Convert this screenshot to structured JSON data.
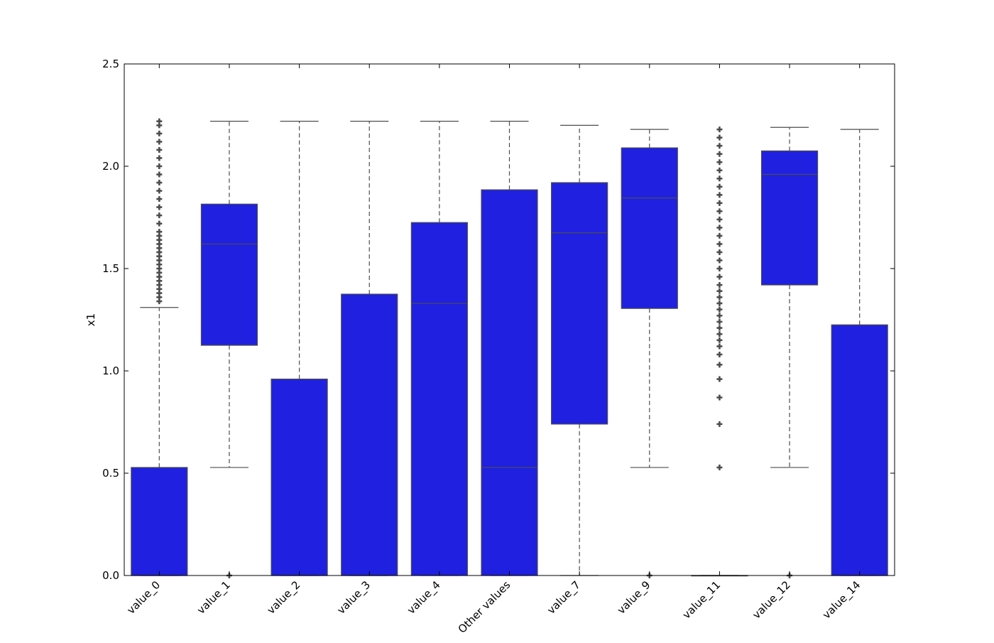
{
  "chart_data": {
    "type": "box",
    "title": "",
    "xlabel": "",
    "ylabel": "x1",
    "ylim": [
      0.0,
      2.5
    ],
    "yticks": [
      0.0,
      0.5,
      1.0,
      1.5,
      2.0,
      2.5
    ],
    "ytick_labels": [
      "0.0",
      "0.5",
      "1.0",
      "1.5",
      "2.0",
      "2.5"
    ],
    "grid": false,
    "legend": "none",
    "colors": {
      "box_fill": "#2020e0",
      "box_edge": "#4d4d4d",
      "whisker": "#4d4d4d",
      "flier": "#4d4d4d"
    },
    "categories": [
      "value_0",
      "value_1",
      "value_2",
      "value_3",
      "value_4",
      "Other values",
      "value_7",
      "value_9",
      "value_11",
      "value_12",
      "value_14"
    ],
    "boxes": [
      {
        "q1": 0.0,
        "median": 0.0,
        "q3": 0.528,
        "whisker_low": 0.0,
        "whisker_high": 1.31,
        "fliers": [
          1.34,
          1.36,
          1.38,
          1.4,
          1.42,
          1.44,
          1.46,
          1.48,
          1.5,
          1.52,
          1.54,
          1.56,
          1.58,
          1.6,
          1.62,
          1.64,
          1.66,
          1.68,
          1.72,
          1.76,
          1.8,
          1.84,
          1.88,
          1.92,
          1.96,
          2.0,
          2.04,
          2.08,
          2.12,
          2.16,
          2.2,
          2.22
        ]
      },
      {
        "q1": 1.125,
        "median": 1.62,
        "q3": 1.815,
        "whisker_low": 0.528,
        "whisker_high": 2.22,
        "fliers": [
          0.0
        ]
      },
      {
        "q1": 0.0,
        "median": 0.0,
        "q3": 0.96,
        "whisker_low": 0.0,
        "whisker_high": 2.22,
        "fliers": []
      },
      {
        "q1": 0.0,
        "median": 0.0,
        "q3": 1.375,
        "whisker_low": 0.0,
        "whisker_high": 2.22,
        "fliers": []
      },
      {
        "q1": 0.0,
        "median": 1.33,
        "q3": 1.725,
        "whisker_low": 0.0,
        "whisker_high": 2.22,
        "fliers": []
      },
      {
        "q1": 0.0,
        "median": 0.528,
        "q3": 1.885,
        "whisker_low": 0.0,
        "whisker_high": 2.22,
        "fliers": []
      },
      {
        "q1": 0.74,
        "median": 1.675,
        "q3": 1.92,
        "whisker_low": 0.0,
        "whisker_high": 2.2,
        "fliers": []
      },
      {
        "q1": 1.305,
        "median": 1.845,
        "q3": 2.09,
        "whisker_low": 0.528,
        "whisker_high": 2.18,
        "fliers": [
          0.0
        ]
      },
      {
        "q1": 0.0,
        "median": 0.0,
        "q3": 0.0,
        "whisker_low": 0.0,
        "whisker_high": 0.0,
        "fliers": [
          0.528,
          0.74,
          0.87,
          0.96,
          1.03,
          1.08,
          1.12,
          1.15,
          1.18,
          1.21,
          1.24,
          1.27,
          1.3,
          1.33,
          1.36,
          1.39,
          1.42,
          1.46,
          1.5,
          1.54,
          1.58,
          1.62,
          1.66,
          1.7,
          1.74,
          1.78,
          1.82,
          1.86,
          1.9,
          1.94,
          1.98,
          2.02,
          2.06,
          2.1,
          2.14,
          2.18
        ]
      },
      {
        "q1": 1.42,
        "median": 1.96,
        "q3": 2.075,
        "whisker_low": 0.528,
        "whisker_high": 2.19,
        "fliers": [
          0.0
        ]
      },
      {
        "q1": 0.0,
        "median": 0.0,
        "q3": 1.225,
        "whisker_low": 0.0,
        "whisker_high": 2.18,
        "fliers": []
      }
    ]
  }
}
